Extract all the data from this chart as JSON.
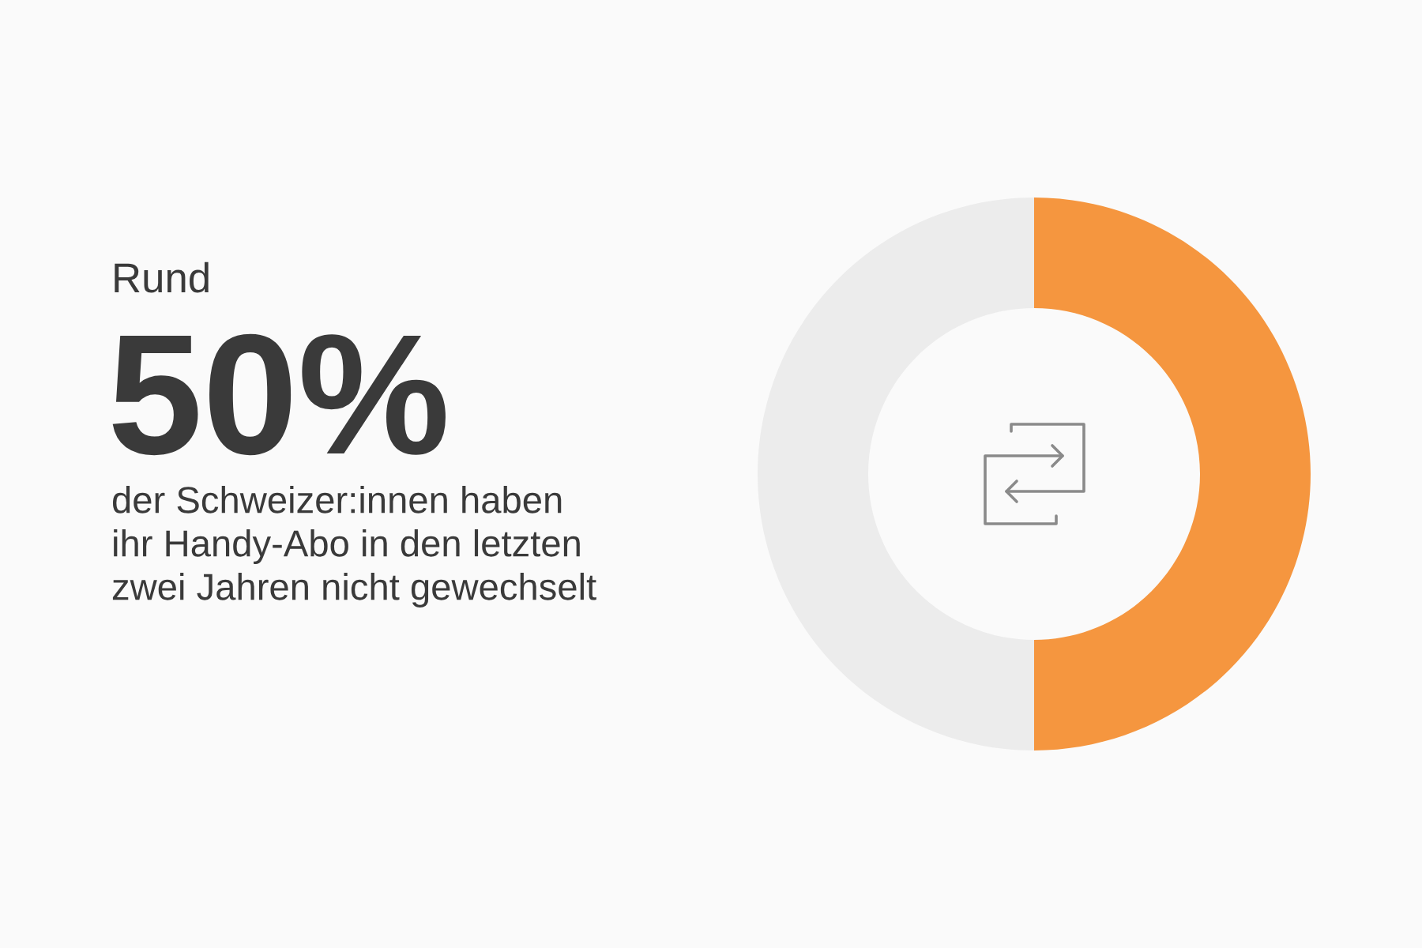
{
  "chart_data": {
    "type": "donut",
    "categories": [
      null,
      null
    ],
    "values": [
      50,
      50
    ],
    "colors": [
      "#f5963f",
      "#ececec"
    ],
    "annotations": [
      "Rund",
      "50%",
      "der Schweizer:innen haben\nihr Handy-Abo in den letzten\nzwei Jahren nicht gewechselt"
    ]
  }
}
